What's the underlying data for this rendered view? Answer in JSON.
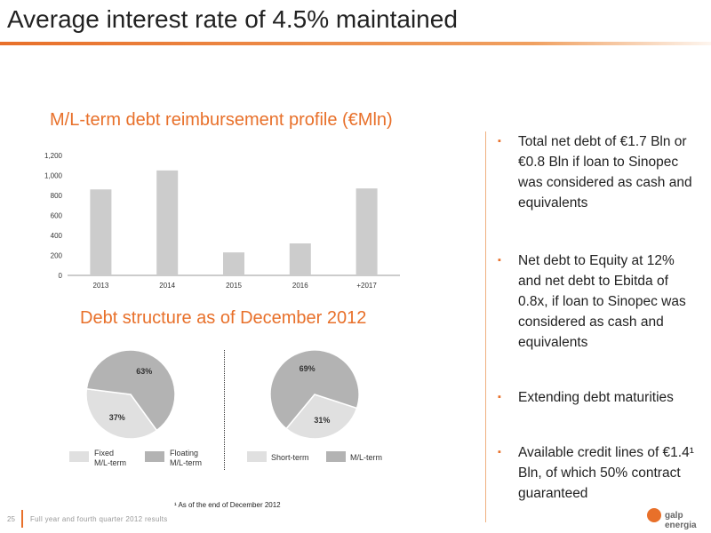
{
  "page": {
    "title": "Average interest rate of 4.5% maintained",
    "page_number": "25",
    "footer_text": "Full year and fourth quarter 2012 results",
    "logo_text": "galp energia",
    "footnote": "¹ As of the end of December 2012",
    "accent_color": "#e8702a"
  },
  "bullets": [
    "Total net debt of €1.7 Bln or €0.8 Bln if loan to Sinopec was considered as cash and equivalents",
    "Net debt to Equity at 12% and net debt to Ebitda of 0.8x, if loan to Sinopec was considered as cash and equivalents",
    "Extending debt maturities",
    "Available credit lines of €1.4¹ Bln, of which 50% contract guaranteed"
  ],
  "chart_data": [
    {
      "type": "bar",
      "title": "M/L-term debt reimbursement profile (€Mln)",
      "categories": [
        "2013",
        "2014",
        "2015",
        "2016",
        "+2017"
      ],
      "values": [
        860,
        1050,
        230,
        320,
        870
      ],
      "ylim": [
        0,
        1200
      ],
      "yticks": [
        "0",
        "200",
        "400",
        "600",
        "800",
        "1,000",
        "1,200"
      ],
      "bar_color": "#cccccc",
      "grid": false
    },
    {
      "type": "pie",
      "title": "Debt structure as of December 2012",
      "slices": [
        {
          "label": "Fixed M/L-term",
          "legend_lines": [
            "Fixed",
            "M/L-term"
          ],
          "value": 37,
          "value_label": "37%",
          "color": "#e0e0e0"
        },
        {
          "label": "Floating M/L-term",
          "legend_lines": [
            "Floating",
            "M/L-term"
          ],
          "value": 63,
          "value_label": "63%",
          "color": "#b3b3b3"
        }
      ]
    },
    {
      "type": "pie",
      "slices": [
        {
          "label": "Short-term",
          "legend_lines": [
            "Short-term"
          ],
          "value": 31,
          "value_label": "31%",
          "color": "#e0e0e0"
        },
        {
          "label": "M/L-term",
          "legend_lines": [
            "M/L-term"
          ],
          "value": 69,
          "value_label": "69%",
          "color": "#b3b3b3"
        }
      ]
    }
  ]
}
